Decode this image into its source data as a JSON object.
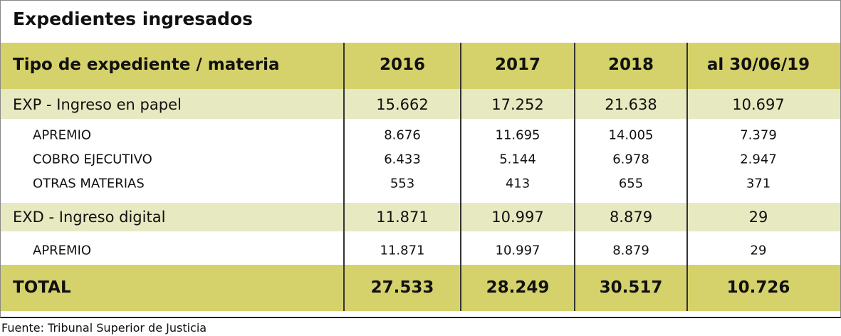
{
  "header": {
    "title": "Expedientes ingresados"
  },
  "table": {
    "columns": [
      "Tipo de expediente / materia",
      "2016",
      "2017",
      "2018",
      "al 30/06/19"
    ],
    "rows": [
      [
        "EXP - Ingreso en papel",
        "15.662",
        "17.252",
        "21.638",
        "10.697"
      ],
      [
        "APREMIO",
        "8.676",
        "11.695",
        "14.005",
        "7.379"
      ],
      [
        "COBRO EJECUTIVO",
        "6.433",
        "5.144",
        "6.978",
        "2.947"
      ],
      [
        "OTRAS MATERIAS",
        "553",
        "413",
        "655",
        "371"
      ],
      [
        "EXD - Ingreso digital",
        "11.871",
        "10.997",
        "8.879",
        "29"
      ],
      [
        "APREMIO",
        "11.871",
        "10.997",
        "8.879",
        "29"
      ],
      [
        "TOTAL",
        "27.533",
        "28.249",
        "30.517",
        "10.726"
      ]
    ]
  },
  "footer": {
    "source": "Fuente: Tribunal Superior de Justicia"
  }
}
